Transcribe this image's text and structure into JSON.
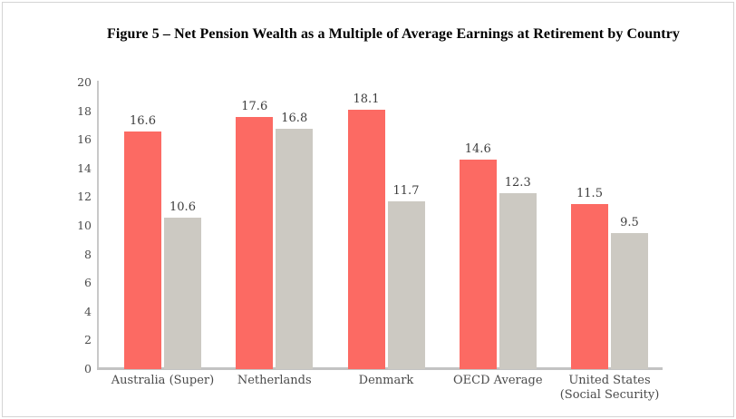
{
  "title": "Figure 5 – Net Pension Wealth as a Multiple of Average Earnings at Retirement by Country",
  "colors": {
    "red_bar": "#fc6a63",
    "gray_bar": "#ccc9c2",
    "axis": "#c9c9c9",
    "tick_text": "#4a4a4a",
    "value_text": "#3d3d3d",
    "page_border": "#d4d4d4"
  },
  "chart_data": {
    "type": "bar",
    "title": "Figure 5 – Net Pension Wealth as a Multiple of Average Earnings at Retirement by Country",
    "categories": [
      "Australia (Super)",
      "Netherlands",
      "Denmark",
      "OECD Average",
      "United States\n(Social Security)"
    ],
    "series": [
      {
        "name": "red",
        "color": "#fc6a63",
        "values": [
          16.6,
          17.6,
          18.1,
          14.6,
          11.5
        ]
      },
      {
        "name": "gray",
        "color": "#ccc9c2",
        "values": [
          10.6,
          16.8,
          11.7,
          12.3,
          9.5
        ]
      }
    ],
    "xlabel": "",
    "ylabel": "",
    "ylim": [
      0,
      20
    ],
    "yticks": [
      0,
      2,
      4,
      6,
      8,
      10,
      12,
      14,
      16,
      18,
      20
    ],
    "grid": false,
    "legend": "none",
    "value_labels": "above bars, one decimal"
  }
}
